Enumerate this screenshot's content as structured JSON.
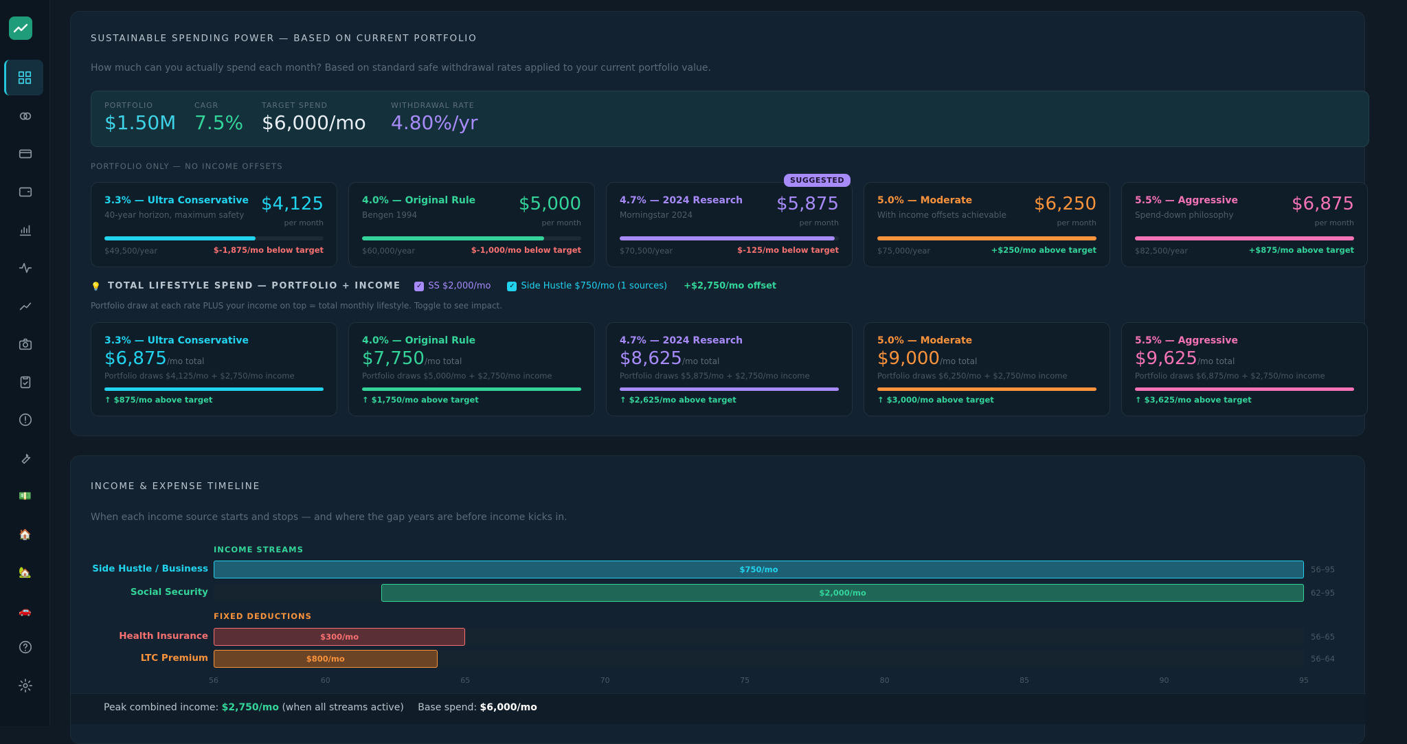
{
  "sidebar": {
    "items": [
      {
        "icon": "dashboard-icon"
      },
      {
        "icon": "rings-icon"
      },
      {
        "icon": "credit-card-icon"
      },
      {
        "icon": "wallet-icon"
      },
      {
        "icon": "bar-chart-icon"
      },
      {
        "icon": "activity-icon"
      },
      {
        "icon": "trend-icon"
      },
      {
        "icon": "camera-icon"
      },
      {
        "icon": "clipboard-icon"
      },
      {
        "icon": "alert-icon"
      },
      {
        "icon": "wrench-icon"
      },
      {
        "icon": "money-emoji",
        "glyph": "💵"
      },
      {
        "icon": "house-emoji",
        "glyph": "🏠"
      },
      {
        "icon": "house-garden-emoji",
        "glyph": "🏡"
      },
      {
        "icon": "car-emoji",
        "glyph": "🚗"
      },
      {
        "icon": "help-icon"
      },
      {
        "icon": "settings-icon"
      }
    ]
  },
  "spending": {
    "title": "SUSTAINABLE SPENDING POWER — BASED ON CURRENT PORTFOLIO",
    "description": "How much can you actually spend each month? Based on standard safe withdrawal rates applied to your current portfolio value.",
    "stats": [
      {
        "label": "PORTFOLIO",
        "value": "$1.50M",
        "color": "#3fd2e6"
      },
      {
        "label": "CAGR",
        "value": "7.5%",
        "color": "#34d399"
      },
      {
        "label": "TARGET SPEND",
        "value": "$6,000/mo",
        "color": "#e8eef3"
      },
      {
        "label": "WITHDRAWAL RATE",
        "value": "4.80%/yr",
        "color": "#a78bfa"
      }
    ],
    "portfolio_only_label": "PORTFOLIO ONLY — NO INCOME OFFSETS",
    "suggested_badge": "SUGGESTED",
    "rates": [
      {
        "name": "3.3% — Ultra Conservative",
        "sub": "40-year horizon, maximum safety",
        "amount": "$4,125",
        "per": "per month",
        "fill": 0.69,
        "yearly": "$49,500/year",
        "delta": "$-1,875/mo below target",
        "color": "#22d3ee",
        "delta_color": "#f87171"
      },
      {
        "name": "4.0% — Original Rule",
        "sub": "Bengen 1994",
        "amount": "$5,000",
        "per": "per month",
        "fill": 0.83,
        "yearly": "$60,000/year",
        "delta": "$-1,000/mo below target",
        "color": "#34d399",
        "delta_color": "#f87171"
      },
      {
        "name": "4.7% — 2024 Research",
        "sub": "Morningstar 2024",
        "amount": "$5,875",
        "per": "per month",
        "fill": 0.98,
        "yearly": "$70,500/year",
        "delta": "$-125/mo below target",
        "color": "#a78bfa",
        "delta_color": "#f87171"
      },
      {
        "name": "5.0% — Moderate",
        "sub": "With income offsets achievable",
        "amount": "$6,250",
        "per": "per month",
        "fill": 1.0,
        "yearly": "$75,000/year",
        "delta": "+$250/mo above target",
        "color": "#fb923c",
        "delta_color": "#34d399"
      },
      {
        "name": "5.5% — Aggressive",
        "sub": "Spend-down philosophy",
        "amount": "$6,875",
        "per": "per month",
        "fill": 1.0,
        "yearly": "$82,500/year",
        "delta": "+$875/mo above target",
        "color": "#f472b6",
        "delta_color": "#34d399"
      }
    ],
    "lifestyle": {
      "bulb": "💡",
      "title": "TOTAL LIFESTYLE SPEND — PORTFOLIO + INCOME",
      "toggle_ss": "SS $2,000/mo",
      "toggle_side": "Side Hustle $750/mo (1 sources)",
      "offset": "+$2,750/mo offset",
      "description": "Portfolio draw at each rate PLUS your income on top = total monthly lifestyle. Toggle to see impact.",
      "unit": "/mo total",
      "cards": [
        {
          "name": "3.3% — Ultra Conservative",
          "total": "$6,875",
          "note": "Portfolio draws $4,125/mo + $2,750/mo income",
          "above": "↑ $875/mo above target",
          "color": "#22d3ee"
        },
        {
          "name": "4.0% — Original Rule",
          "total": "$7,750",
          "note": "Portfolio draws $5,000/mo + $2,750/mo income",
          "above": "↑ $1,750/mo above target",
          "color": "#34d399"
        },
        {
          "name": "4.7% — 2024 Research",
          "total": "$8,625",
          "note": "Portfolio draws $5,875/mo + $2,750/mo income",
          "above": "↑ $2,625/mo above target",
          "color": "#a78bfa"
        },
        {
          "name": "5.0% — Moderate",
          "total": "$9,000",
          "note": "Portfolio draws $6,250/mo + $2,750/mo income",
          "above": "↑ $3,000/mo above target",
          "color": "#fb923c"
        },
        {
          "name": "5.5% — Aggressive",
          "total": "$9,625",
          "note": "Portfolio draws $6,875/mo + $2,750/mo income",
          "above": "↑ $3,625/mo above target",
          "color": "#f472b6"
        }
      ]
    }
  },
  "timeline": {
    "title": "INCOME & EXPENSE TIMELINE",
    "description": "When each income source starts and stops — and where the gap years are before income kicks in.",
    "income_header": "INCOME STREAMS",
    "deduction_header": "FIXED DEDUCTIONS",
    "axis_min": 56,
    "axis_max": 95,
    "ticks": [
      "56",
      "60",
      "65",
      "70",
      "75",
      "80",
      "85",
      "90",
      "95"
    ],
    "income": [
      {
        "label": "Side Hustle / Business",
        "amount": "$750/mo",
        "start": 56,
        "end": 95,
        "range": "56–95",
        "color": "#22d3ee"
      },
      {
        "label": "Social Security",
        "amount": "$2,000/mo",
        "start": 62,
        "end": 95,
        "range": "62–95",
        "color": "#34d399"
      }
    ],
    "deductions": [
      {
        "label": "Health Insurance",
        "amount": "$300/mo",
        "start": 56,
        "end": 65,
        "range": "56–65",
        "color": "#f87171"
      },
      {
        "label": "LTC Premium",
        "amount": "$800/mo",
        "start": 56,
        "end": 64,
        "range": "56–64",
        "color": "#fb923c"
      }
    ],
    "summary": {
      "peak_label": "Peak combined income:",
      "peak_value": "$2,750/mo",
      "peak_note": "(when all streams active)",
      "base_label": "Base spend:",
      "base_value": "$6,000/mo"
    }
  }
}
